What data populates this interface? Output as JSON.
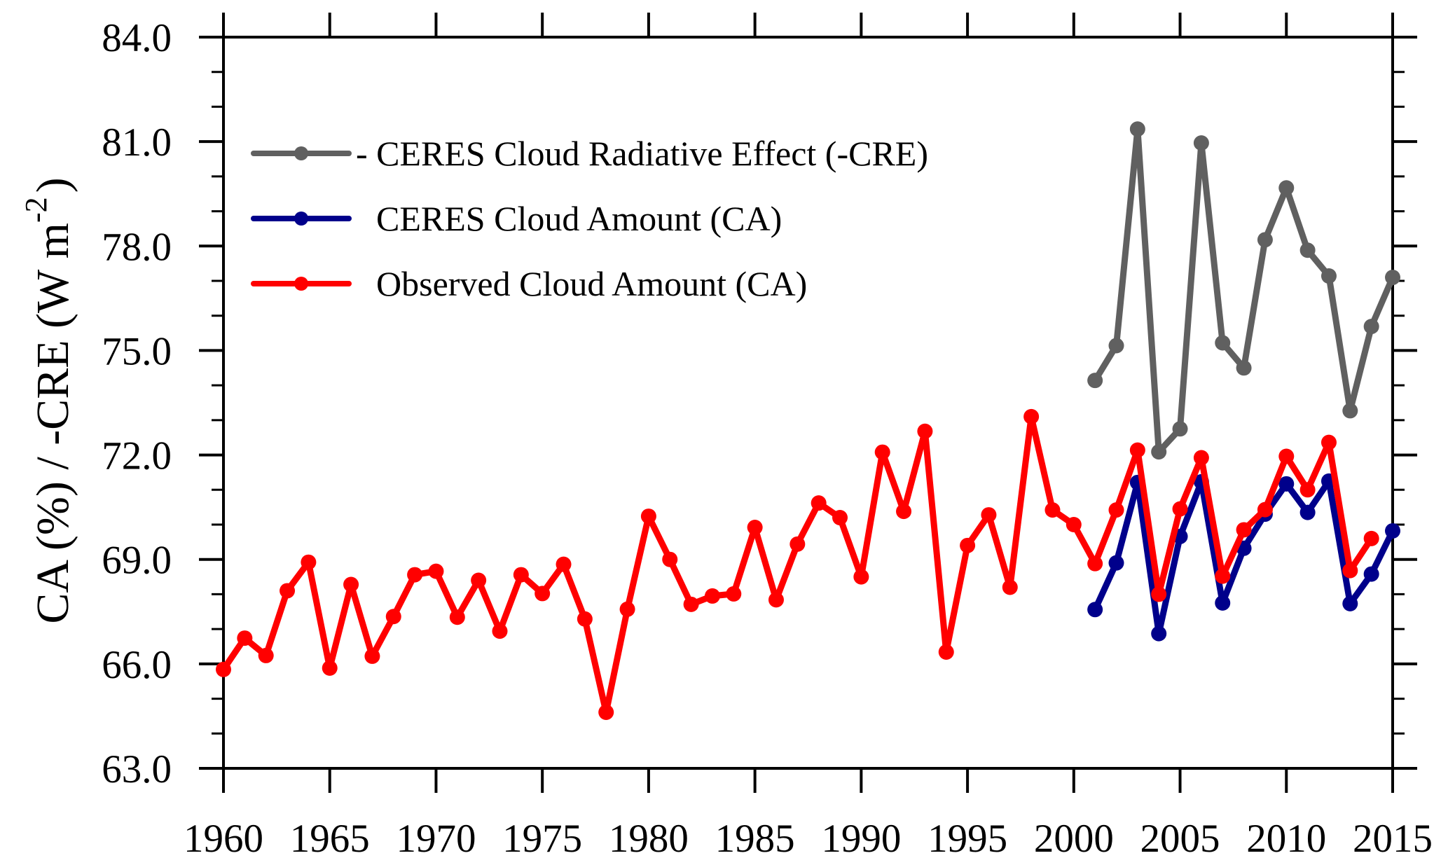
{
  "chart_data": {
    "type": "line",
    "title": "",
    "xlabel": "",
    "ylabel": "CA (%) / -CRE (W m-2)",
    "ylabel_parts": {
      "main": "CA (%) / -CRE (W m",
      "superscript": "-2",
      "closing": ")"
    },
    "xlim": [
      1960,
      2015
    ],
    "ylim": [
      63.0,
      84.0
    ],
    "x_ticks": [
      1960,
      1965,
      1970,
      1975,
      1980,
      1985,
      1990,
      1995,
      2000,
      2005,
      2010,
      2015
    ],
    "x_tick_labels": [
      "1960",
      "1965",
      "1970",
      "1975",
      "1980",
      "1985",
      "1990",
      "1995",
      "2000",
      "2005",
      "2010",
      "2015"
    ],
    "y_ticks": [
      63.0,
      66.0,
      69.0,
      72.0,
      75.0,
      78.0,
      81.0,
      84.0
    ],
    "y_tick_labels": [
      "63.0",
      "66.0",
      "69.0",
      "72.0",
      "75.0",
      "78.0",
      "81.0",
      "84.0"
    ],
    "y_minor_step": 1.0,
    "grid": false,
    "legend_position": "top-left",
    "series": [
      {
        "name": "- CERES Cloud Radiative Effect (-CRE)",
        "color": "#606060",
        "x": [
          2001,
          2002,
          2003,
          2004,
          2005,
          2006,
          2007,
          2008,
          2009,
          2010,
          2011,
          2012,
          2013,
          2014,
          2015
        ],
        "values": [
          74.14,
          75.14,
          81.36,
          72.09,
          72.75,
          80.96,
          75.22,
          74.5,
          78.18,
          79.67,
          77.88,
          77.14,
          73.27,
          75.69,
          77.1
        ]
      },
      {
        "name": "CERES Cloud Amount (CA)",
        "color": "#00008b",
        "x": [
          2001,
          2002,
          2003,
          2004,
          2005,
          2006,
          2007,
          2008,
          2009,
          2010,
          2011,
          2012,
          2013,
          2014,
          2015
        ],
        "values": [
          67.56,
          68.9,
          71.21,
          66.87,
          69.66,
          71.23,
          67.75,
          69.32,
          70.3,
          71.17,
          70.35,
          71.25,
          67.73,
          68.58,
          69.82
        ]
      },
      {
        "name": "Observed Cloud Amount (CA)",
        "color": "#ff0000",
        "x": [
          1960,
          1961,
          1962,
          1963,
          1964,
          1965,
          1966,
          1967,
          1968,
          1969,
          1970,
          1971,
          1972,
          1973,
          1974,
          1975,
          1976,
          1977,
          1978,
          1979,
          1980,
          1981,
          1982,
          1983,
          1984,
          1985,
          1986,
          1987,
          1988,
          1989,
          1990,
          1991,
          1992,
          1993,
          1994,
          1995,
          1996,
          1997,
          1998,
          1999,
          2000,
          2001,
          2002,
          2003,
          2004,
          2005,
          2006,
          2007,
          2008,
          2009,
          2010,
          2011,
          2012,
          2013,
          2014
        ],
        "values": [
          65.84,
          66.74,
          66.24,
          68.1,
          68.92,
          65.88,
          68.28,
          66.22,
          67.36,
          68.56,
          68.66,
          67.34,
          68.4,
          66.94,
          68.56,
          68.02,
          68.86,
          67.29,
          64.61,
          67.57,
          70.24,
          69.0,
          67.71,
          67.95,
          68.01,
          69.92,
          67.84,
          69.44,
          70.62,
          70.2,
          68.5,
          72.08,
          70.38,
          72.68,
          66.34,
          69.4,
          70.28,
          68.2,
          73.1,
          70.42,
          70.0,
          68.88,
          70.42,
          72.14,
          68.0,
          70.45,
          71.92,
          68.52,
          69.85,
          70.43,
          71.96,
          71.0,
          72.36,
          68.68,
          69.6
        ]
      }
    ]
  }
}
